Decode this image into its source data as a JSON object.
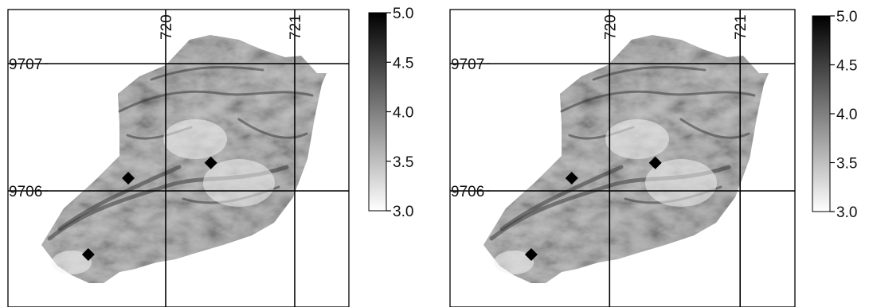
{
  "colors": {
    "terrain_light": "#f2f2f2",
    "terrain_mid": "#a8a8a8",
    "terrain_dark": "#3a3a3a",
    "legend_low": "#ffffff",
    "legend_high": "#000000",
    "marker": "#000000",
    "grid": "#000000"
  },
  "icons": {
    "marker": "diamond-marker-icon"
  },
  "chart_data": [
    {
      "type": "heatmap",
      "title": "",
      "grid_on": true,
      "x_grid_values": [
        720,
        721
      ],
      "y_grid_values": [
        9707,
        9706
      ],
      "x_tick_labels": [
        "720",
        "721"
      ],
      "y_tick_labels": [
        "9707",
        "9706"
      ],
      "xlim": [
        719.0,
        721.32
      ],
      "ylim": [
        9705.3,
        9707.42
      ],
      "points": [
        {
          "x": 720.35,
          "y": 9706.22
        },
        {
          "x": 719.71,
          "y": 9706.1
        },
        {
          "x": 719.4,
          "y": 9705.5
        }
      ],
      "legend": {
        "placement": "right",
        "min": 3.0,
        "max": 5.0,
        "ticks": [
          5.0,
          4.5,
          4.0,
          3.5,
          3.0
        ],
        "tick_labels": [
          "5.0",
          "4.5",
          "4.0",
          "3.5",
          "3.0"
        ]
      }
    },
    {
      "type": "heatmap",
      "title": "",
      "grid_on": true,
      "x_grid_values": [
        720,
        721
      ],
      "y_grid_values": [
        9707,
        9706
      ],
      "x_tick_labels": [
        "720",
        "721"
      ],
      "y_tick_labels": [
        "9707",
        "9706"
      ],
      "xlim": [
        719.0,
        721.32
      ],
      "ylim": [
        9705.3,
        9707.42
      ],
      "points": [
        {
          "x": 720.35,
          "y": 9706.22
        },
        {
          "x": 719.71,
          "y": 9706.1
        },
        {
          "x": 719.4,
          "y": 9705.5
        }
      ],
      "legend": {
        "placement": "right",
        "min": 3.0,
        "max": 5.0,
        "ticks": [
          5.0,
          4.5,
          4.0,
          3.5,
          3.0
        ],
        "tick_labels": [
          "5.0",
          "4.5",
          "4.0",
          "3.5",
          "3.0"
        ]
      }
    }
  ]
}
